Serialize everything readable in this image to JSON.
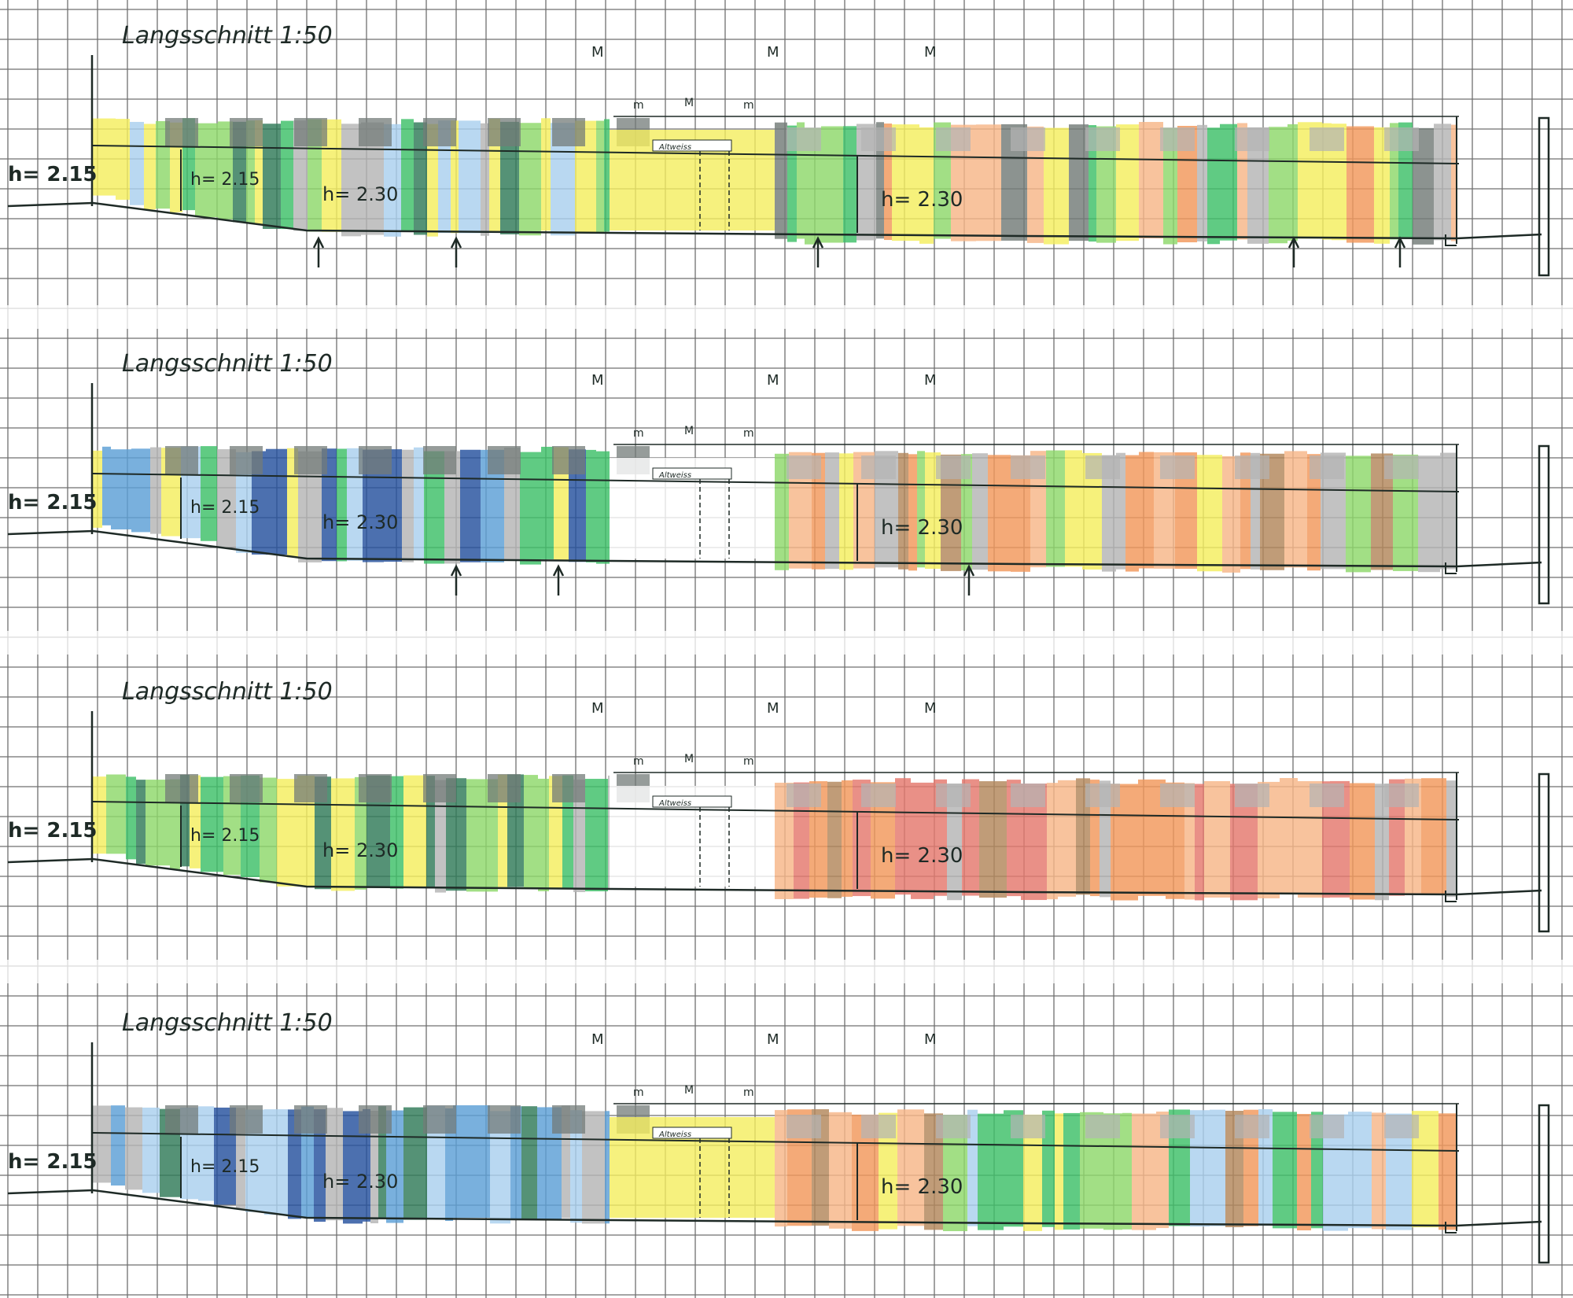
{
  "colors": {
    "grid": "#6f6f6f",
    "paper": "#ffffff",
    "ink": "#1e2a26",
    "yellow": "#f4ee5e",
    "green_light": "#8ed86a",
    "green_mid": "#3dbf68",
    "green_dark": "#2f7a58",
    "grey": "#b4b4b4",
    "grey_dark": "#737b78",
    "blue_light": "#a9cfee",
    "blue_mid": "#5c9fd6",
    "blue_dark": "#25509d",
    "orange": "#f1975a",
    "orange_pale": "#f6b688",
    "brown": "#b2865a",
    "red": "#e4786d"
  },
  "panels": [
    {
      "title": "Langsschnitt 1:50",
      "h_left": "h= 2.15",
      "h_mid": "h= 2.15",
      "h_center": "h= 2.30",
      "h_right": "h= 2.30",
      "symbol_1": "M",
      "symbol_2": "M",
      "symbol_3": "M",
      "m1": "m",
      "m2": "M",
      "m3": "m",
      "mid_label": "Altweiss",
      "middle_color": "yellow",
      "left_palette": [
        "yellow",
        "green_light",
        "green_mid",
        "blue_light",
        "green_dark",
        "grey",
        "yellow"
      ],
      "right_palette": [
        "orange",
        "grey",
        "green_light",
        "yellow",
        "orange_pale",
        "grey_dark",
        "green_mid"
      ]
    },
    {
      "title": "Langsschnitt 1:50",
      "h_left": "h= 2.15",
      "h_mid": "h= 2.15",
      "h_center": "h= 2.30",
      "h_right": "h= 2.30",
      "symbol_1": "M",
      "symbol_2": "M",
      "symbol_3": "M",
      "m1": "m",
      "m2": "M",
      "m3": "m",
      "mid_label": "Altweiss",
      "middle_color": "paper",
      "left_palette": [
        "blue_dark",
        "blue_mid",
        "blue_light",
        "green_mid",
        "grey",
        "yellow",
        "blue_light"
      ],
      "right_palette": [
        "brown",
        "orange",
        "orange_pale",
        "yellow",
        "green_light",
        "grey",
        "orange"
      ]
    },
    {
      "title": "Langsschnitt 1:50",
      "h_left": "h= 2.15",
      "h_mid": "h= 2.15",
      "h_center": "h= 2.30",
      "h_right": "h= 2.30",
      "symbol_1": "M",
      "symbol_2": "M",
      "symbol_3": "M",
      "m1": "m",
      "m2": "M",
      "m3": "m",
      "mid_label": "Altweiss",
      "middle_color": "paper",
      "left_palette": [
        "green_light",
        "green_mid",
        "green_dark",
        "grey",
        "green_light",
        "yellow",
        "green_mid"
      ],
      "right_palette": [
        "orange",
        "red",
        "brown",
        "orange_pale",
        "orange",
        "grey",
        "red"
      ]
    },
    {
      "title": "Langsschnitt 1:50",
      "h_left": "h= 2.15",
      "h_mid": "h= 2.15",
      "h_center": "h= 2.30",
      "h_right": "h= 2.30",
      "symbol_1": "M",
      "symbol_2": "M",
      "symbol_3": "M",
      "m1": "m",
      "m2": "M",
      "m3": "m",
      "mid_label": "Altweiss",
      "middle_color": "yellow",
      "left_palette": [
        "blue_dark",
        "blue_mid",
        "blue_light",
        "green_dark",
        "grey",
        "blue_light",
        "blue_mid"
      ],
      "right_palette": [
        "brown",
        "orange",
        "green_light",
        "yellow",
        "orange_pale",
        "blue_light",
        "green_mid"
      ]
    }
  ]
}
